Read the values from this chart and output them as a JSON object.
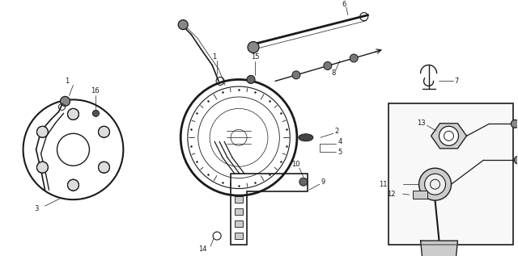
{
  "bg_color": "#ffffff",
  "line_color": "#1a1a1a",
  "fig_width": 6.4,
  "fig_height": 3.17
}
